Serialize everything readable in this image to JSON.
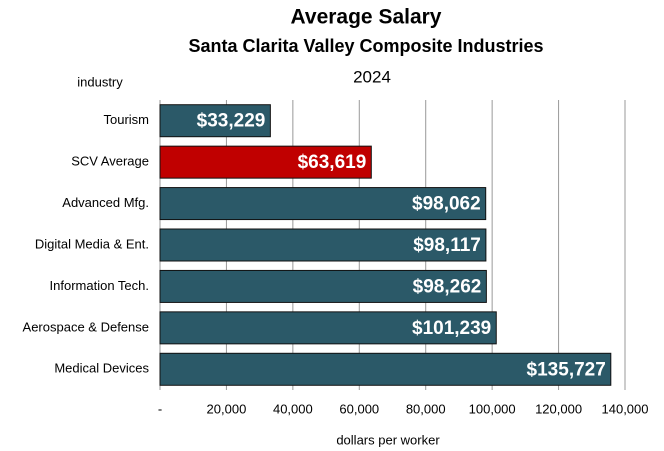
{
  "chart_data": {
    "type": "barh",
    "title": "Average Salary",
    "subtitle": "Santa Clarita Valley Composite Industries",
    "subtitle2": "2024",
    "y_axis_label": "industry",
    "x_axis_label": "dollars per worker",
    "categories": [
      "Tourism",
      "SCV Average",
      "Advanced Mfg.",
      "Digital Media & Ent.",
      "Information Tech.",
      "Aerospace & Defense",
      "Medical Devices"
    ],
    "values": [
      33229,
      63619,
      98062,
      98117,
      98262,
      101239,
      135727
    ],
    "value_labels": [
      "$33,229",
      "$63,619",
      "$98,062",
      "$98,117",
      "$98,262",
      "$101,239",
      "$135,727"
    ],
    "colors": [
      "#2b5968",
      "#c00000",
      "#2b5968",
      "#2b5968",
      "#2b5968",
      "#2b5968",
      "#2b5968"
    ],
    "xlim": [
      0,
      140000
    ],
    "xticks": [
      {
        "value": 0,
        "label": "-"
      },
      {
        "value": 20000,
        "label": "20,000"
      },
      {
        "value": 40000,
        "label": "40,000"
      },
      {
        "value": 60000,
        "label": "60,000"
      },
      {
        "value": 80000,
        "label": "80,000"
      },
      {
        "value": 100000,
        "label": "100,000"
      },
      {
        "value": 120000,
        "label": "120,000"
      },
      {
        "value": 140000,
        "label": "140,000"
      }
    ],
    "grid": true
  }
}
